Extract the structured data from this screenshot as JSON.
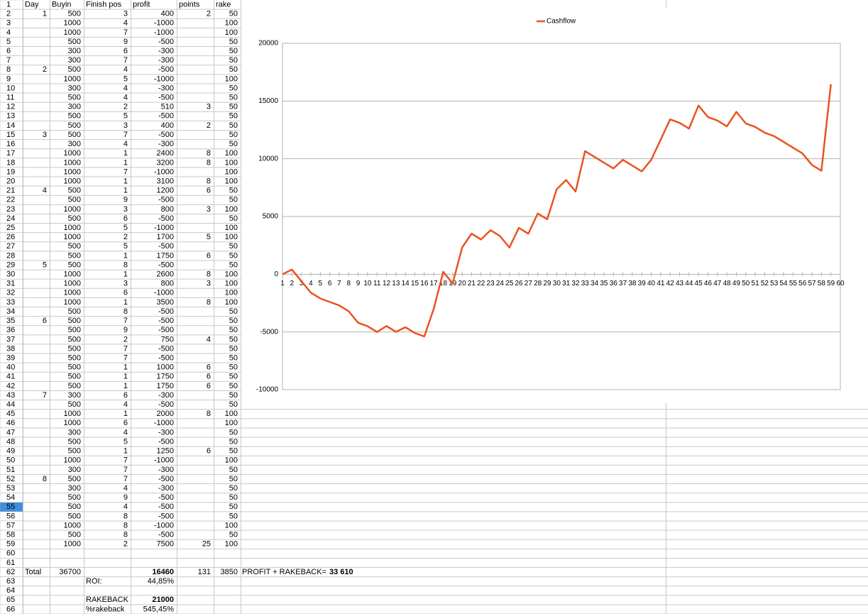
{
  "sheet": {
    "row_headers": [
      1,
      2,
      3,
      4,
      5,
      6,
      7,
      8,
      9,
      10,
      11,
      12,
      13,
      14,
      15,
      16,
      17,
      18,
      19,
      20,
      21,
      22,
      23,
      24,
      25,
      26,
      27,
      28,
      29,
      30,
      31,
      32,
      33,
      34,
      35,
      36,
      37,
      38,
      39,
      40,
      41,
      42,
      43,
      44,
      45,
      46,
      47,
      48,
      49,
      50,
      51,
      52,
      53,
      54,
      55,
      56,
      57,
      58,
      59,
      60,
      61,
      62,
      63,
      64,
      65,
      66
    ],
    "selected_row": 55,
    "columns": [
      "Day",
      "Buyin",
      "Finish pos",
      "profit",
      "points",
      "rake"
    ],
    "rows": [
      [
        1,
        500,
        3,
        400,
        2,
        50
      ],
      [
        null,
        1000,
        4,
        -1000,
        null,
        100
      ],
      [
        null,
        1000,
        7,
        -1000,
        null,
        100
      ],
      [
        null,
        500,
        9,
        -500,
        null,
        50
      ],
      [
        null,
        300,
        6,
        -300,
        null,
        50
      ],
      [
        null,
        300,
        7,
        -300,
        null,
        50
      ],
      [
        2,
        500,
        4,
        -500,
        null,
        50
      ],
      [
        null,
        1000,
        5,
        -1000,
        null,
        100
      ],
      [
        null,
        300,
        4,
        -300,
        null,
        50
      ],
      [
        null,
        500,
        4,
        -500,
        null,
        50
      ],
      [
        null,
        300,
        2,
        510,
        3,
        50
      ],
      [
        null,
        500,
        5,
        -500,
        null,
        50
      ],
      [
        null,
        500,
        3,
        400,
        2,
        50
      ],
      [
        3,
        500,
        7,
        -500,
        null,
        50
      ],
      [
        null,
        300,
        4,
        -300,
        null,
        50
      ],
      [
        null,
        1000,
        1,
        2400,
        8,
        100
      ],
      [
        null,
        1000,
        1,
        3200,
        8,
        100
      ],
      [
        null,
        1000,
        7,
        -1000,
        null,
        100
      ],
      [
        null,
        1000,
        1,
        3100,
        8,
        100
      ],
      [
        4,
        500,
        1,
        1200,
        6,
        50
      ],
      [
        null,
        500,
        9,
        -500,
        null,
        50
      ],
      [
        null,
        1000,
        3,
        800,
        3,
        100
      ],
      [
        null,
        500,
        6,
        -500,
        null,
        50
      ],
      [
        null,
        1000,
        5,
        -1000,
        null,
        100
      ],
      [
        null,
        1000,
        2,
        1700,
        5,
        100
      ],
      [
        null,
        500,
        5,
        -500,
        null,
        50
      ],
      [
        null,
        500,
        1,
        1750,
        6,
        50
      ],
      [
        5,
        500,
        8,
        -500,
        null,
        50
      ],
      [
        null,
        1000,
        1,
        2600,
        8,
        100
      ],
      [
        null,
        1000,
        3,
        800,
        3,
        100
      ],
      [
        null,
        1000,
        6,
        -1000,
        null,
        100
      ],
      [
        null,
        1000,
        1,
        3500,
        8,
        100
      ],
      [
        null,
        500,
        8,
        -500,
        null,
        50
      ],
      [
        6,
        500,
        7,
        -500,
        null,
        50
      ],
      [
        null,
        500,
        9,
        -500,
        null,
        50
      ],
      [
        null,
        500,
        2,
        750,
        4,
        50
      ],
      [
        null,
        500,
        7,
        -500,
        null,
        50
      ],
      [
        null,
        500,
        7,
        -500,
        null,
        50
      ],
      [
        null,
        500,
        1,
        1000,
        6,
        50
      ],
      [
        null,
        500,
        1,
        1750,
        6,
        50
      ],
      [
        null,
        500,
        1,
        1750,
        6,
        50
      ],
      [
        7,
        300,
        6,
        -300,
        null,
        50
      ],
      [
        null,
        500,
        4,
        -500,
        null,
        50
      ],
      [
        null,
        1000,
        1,
        2000,
        8,
        100
      ],
      [
        null,
        1000,
        6,
        -1000,
        null,
        100
      ],
      [
        null,
        300,
        4,
        -300,
        null,
        50
      ],
      [
        null,
        500,
        5,
        -500,
        null,
        50
      ],
      [
        null,
        500,
        1,
        1250,
        6,
        50
      ],
      [
        null,
        1000,
        7,
        -1000,
        null,
        100
      ],
      [
        null,
        300,
        7,
        -300,
        null,
        50
      ],
      [
        8,
        500,
        7,
        -500,
        null,
        50
      ],
      [
        null,
        300,
        4,
        -300,
        null,
        50
      ],
      [
        null,
        500,
        9,
        -500,
        null,
        50
      ],
      [
        null,
        500,
        4,
        -500,
        null,
        50
      ],
      [
        null,
        500,
        8,
        -500,
        null,
        50
      ],
      [
        null,
        1000,
        8,
        -1000,
        null,
        100
      ],
      [
        null,
        500,
        8,
        -500,
        null,
        50
      ],
      [
        null,
        1000,
        2,
        7500,
        25,
        100
      ]
    ],
    "summary": {
      "total_label": "Total",
      "total_buyin": 36700,
      "total_profit": 16460,
      "total_points": 131,
      "total_rake": 3850,
      "sum_label": "PROFIT + RAKEBACK=",
      "sum_value": "33 610",
      "roi_label": "ROI:",
      "roi": "44,85%",
      "rakeback_label": "RAKEBACK",
      "rakeback": 21000,
      "pct_rakeback_label": "%rakeback",
      "pct_rakeback": "545,45%"
    }
  },
  "chart_data": {
    "type": "line",
    "grid": true,
    "legend_position": "top",
    "x": [
      1,
      2,
      3,
      4,
      5,
      6,
      7,
      8,
      9,
      10,
      11,
      12,
      13,
      14,
      15,
      16,
      17,
      18,
      19,
      20,
      21,
      22,
      23,
      24,
      25,
      26,
      27,
      28,
      29,
      30,
      31,
      32,
      33,
      34,
      35,
      36,
      37,
      38,
      39,
      40,
      41,
      42,
      43,
      44,
      45,
      46,
      47,
      48,
      49,
      50,
      51,
      52,
      53,
      54,
      55,
      56,
      57,
      58,
      59
    ],
    "series": [
      {
        "name": "Cashflow",
        "color": "#e9531f",
        "values": [
          0,
          400,
          -600,
          -1600,
          -2100,
          -2400,
          -2700,
          -3200,
          -4200,
          -4500,
          -5000,
          -4490,
          -4990,
          -4590,
          -5090,
          -5390,
          -2990,
          210,
          -790,
          2310,
          3510,
          3010,
          3810,
          3310,
          2310,
          4010,
          3510,
          5260,
          4760,
          7360,
          8160,
          7160,
          10660,
          10160,
          9660,
          9160,
          9910,
          9410,
          8910,
          9910,
          11660,
          13410,
          13110,
          12610,
          14610,
          13610,
          13310,
          12810,
          14060,
          13060,
          12760,
          12260,
          11960,
          11460,
          10960,
          10460,
          9460,
          8960,
          16460
        ]
      }
    ],
    "xlim": [
      1,
      60
    ],
    "xticks": [
      1,
      2,
      3,
      4,
      5,
      6,
      7,
      8,
      9,
      10,
      11,
      12,
      13,
      14,
      15,
      16,
      17,
      18,
      19,
      20,
      21,
      22,
      23,
      24,
      25,
      26,
      27,
      28,
      29,
      30,
      31,
      32,
      33,
      34,
      35,
      36,
      37,
      38,
      39,
      40,
      41,
      42,
      43,
      44,
      45,
      46,
      47,
      48,
      49,
      50,
      51,
      52,
      53,
      54,
      55,
      56,
      57,
      58,
      59,
      60
    ],
    "ylim": [
      -10000,
      20000
    ],
    "yticks": [
      -10000,
      -5000,
      0,
      5000,
      10000,
      15000,
      20000
    ]
  }
}
